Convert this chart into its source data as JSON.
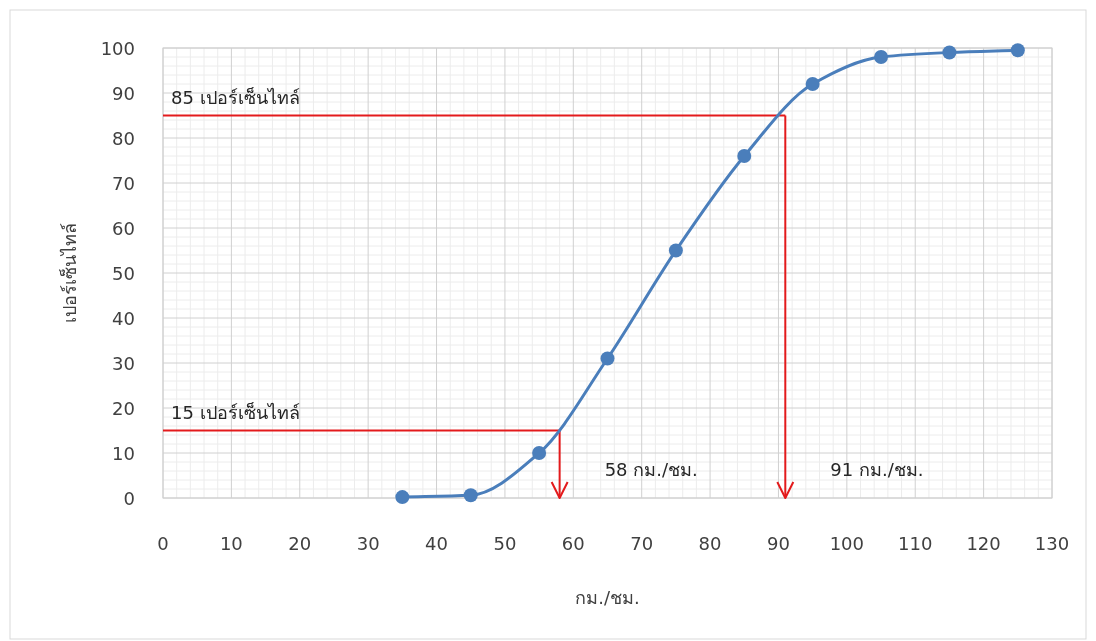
{
  "chart_data": {
    "type": "line",
    "xlabel": "กม./ชม.",
    "ylabel": "เปอร์เซ็นไทล์",
    "x": [
      35,
      45,
      55,
      65,
      75,
      85,
      95,
      105,
      115,
      125
    ],
    "series": [
      {
        "color": "#4a7ebb",
        "values": [
          0.2,
          0.6,
          10,
          31,
          55,
          76,
          92,
          98,
          99,
          99.5
        ]
      }
    ],
    "xlim": [
      0,
      130
    ],
    "xticks": [
      0,
      10,
      20,
      30,
      40,
      50,
      60,
      70,
      80,
      90,
      100,
      110,
      120,
      130
    ],
    "ylim": [
      0,
      100
    ],
    "yticks": [
      0,
      10,
      20,
      30,
      40,
      50,
      60,
      70,
      80,
      90,
      100
    ],
    "grid": true,
    "marker": "circle",
    "line_style": "solid",
    "ref_lines": [
      {
        "axis": "y",
        "value": 15,
        "label": "15 เปอร์เซ็นไทล์",
        "color": "#e31a1c"
      },
      {
        "axis": "x",
        "value": 58,
        "label": "58 กม./ชม.",
        "color": "#e31a1c"
      },
      {
        "axis": "y",
        "value": 85,
        "label": "85 เปอร์เซ็นไทล์",
        "color": "#e31a1c"
      },
      {
        "axis": "x",
        "value": 91,
        "label": "91 กม./ชม.",
        "color": "#e31a1c"
      }
    ]
  }
}
